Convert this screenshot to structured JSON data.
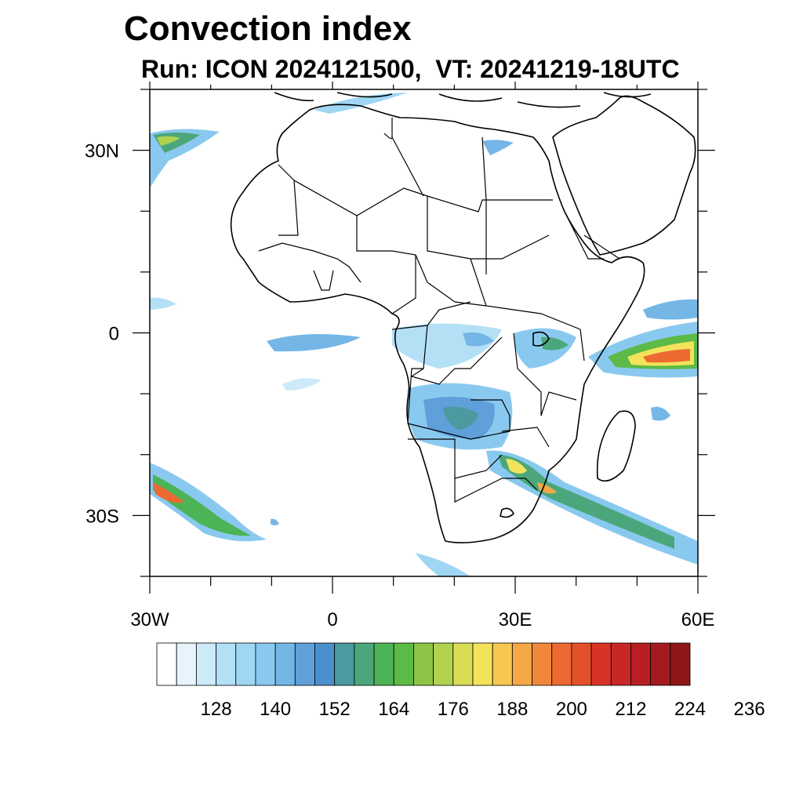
{
  "title": "Convection index",
  "subtitle": "Run: ICON 2024121500,  VT: 20241219-18UTC",
  "map": {
    "lon_range": [
      -30,
      60
    ],
    "lat_range": [
      -40,
      40
    ],
    "lon_ticks": [
      {
        "lon": -30,
        "label": "30W"
      },
      {
        "lon": 0,
        "label": "0"
      },
      {
        "lon": 30,
        "label": "30E"
      },
      {
        "lon": 60,
        "label": "60E"
      }
    ],
    "lat_ticks": [
      {
        "lat": 30,
        "label": "30N"
      },
      {
        "lat": 0,
        "label": "0"
      },
      {
        "lat": -30,
        "label": "30S"
      }
    ]
  },
  "colorbar": {
    "colors": [
      "#ffffff",
      "#e6f4fb",
      "#cdeaf8",
      "#b4e0f6",
      "#9fd6f3",
      "#8ac9ef",
      "#74b6e6",
      "#5f9fda",
      "#4c8fcd",
      "#4a9aa0",
      "#4ba77b",
      "#4cb357",
      "#5cba47",
      "#8dc548",
      "#b0d24f",
      "#d8dd55",
      "#f2e35b",
      "#f7c851",
      "#f4a846",
      "#f0883c",
      "#ec6a32",
      "#e45029",
      "#d93325",
      "#c92626",
      "#b71f24",
      "#a41b1f",
      "#8e1618"
    ],
    "labels": [
      "128",
      "140",
      "152",
      "164",
      "176",
      "188",
      "200",
      "212",
      "224",
      "236"
    ]
  }
}
